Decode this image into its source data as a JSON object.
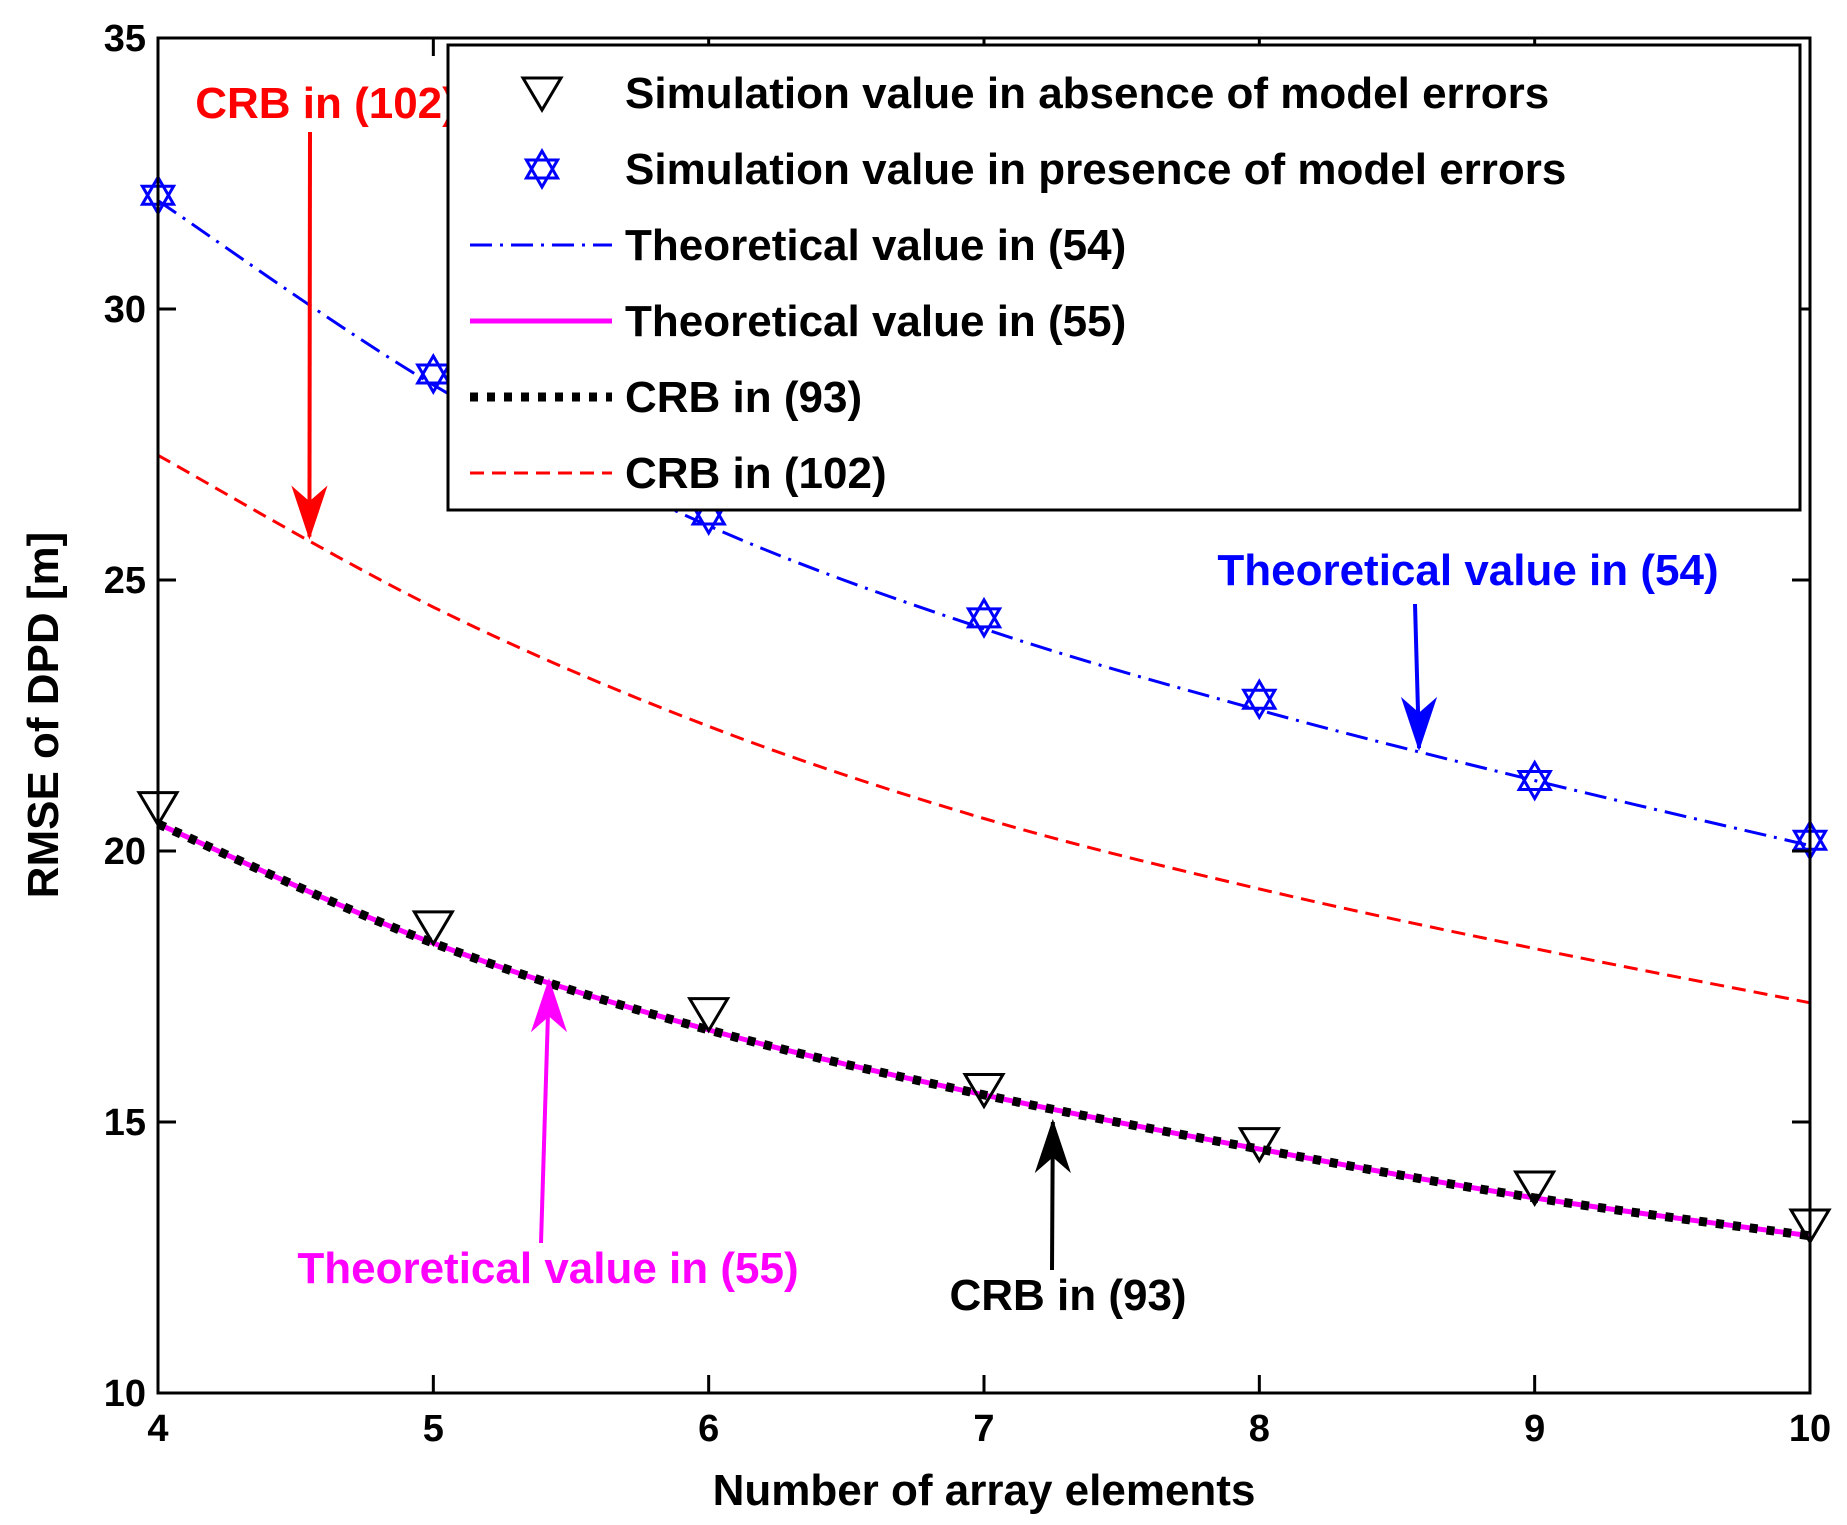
{
  "chart_data": {
    "type": "line",
    "title": "",
    "xlabel": "Number of array elements",
    "ylabel": "RMSE of DPD [m]",
    "xlim": [
      4,
      10
    ],
    "ylim": [
      10,
      35
    ],
    "x_ticks": [
      "4",
      "5",
      "6",
      "7",
      "8",
      "9",
      "10"
    ],
    "y_ticks": [
      "10",
      "15",
      "20",
      "25",
      "30",
      "35"
    ],
    "grid": false,
    "legend_position": "top-right",
    "series": [
      {
        "id": "sim_absence",
        "name": "Simulation value in absence of model errors",
        "style": "markers",
        "marker": "triangle-down",
        "color": "#000000",
        "x": [
          4,
          5,
          6,
          7,
          8,
          9,
          10
        ],
        "y": [
          20.8,
          18.6,
          17.0,
          15.6,
          14.6,
          13.8,
          13.1
        ]
      },
      {
        "id": "sim_presence",
        "name": "Simulation value in presence of model errors",
        "style": "markers",
        "marker": "hexagram",
        "color": "#0000ff",
        "x": [
          4,
          5,
          6,
          7,
          8,
          9,
          10
        ],
        "y": [
          32.1,
          28.8,
          26.2,
          24.3,
          22.8,
          21.3,
          20.2
        ]
      },
      {
        "id": "theo54",
        "name": "Theoretical value in (54)",
        "style": "dash-dot",
        "color": "#0000ff",
        "x": [
          4,
          5,
          6,
          7,
          8,
          9,
          10
        ],
        "y": [
          32.0,
          28.6,
          26.0,
          24.1,
          22.6,
          21.3,
          20.1
        ]
      },
      {
        "id": "theo55",
        "name": "Theoretical value in (55)",
        "style": "solid",
        "color": "#ff00ff",
        "x": [
          4,
          5,
          6,
          7,
          8,
          9,
          10
        ],
        "y": [
          20.5,
          18.3,
          16.7,
          15.5,
          14.5,
          13.6,
          12.9
        ]
      },
      {
        "id": "crb93",
        "name": "CRB in (93)",
        "style": "dotted",
        "color": "#000000",
        "x": [
          4,
          5,
          6,
          7,
          8,
          9,
          10
        ],
        "y": [
          20.5,
          18.3,
          16.7,
          15.5,
          14.5,
          13.6,
          12.9
        ]
      },
      {
        "id": "crb102",
        "name": "CRB in (102)",
        "style": "dashed",
        "color": "#ff0000",
        "x": [
          4,
          5,
          6,
          7,
          8,
          9,
          10
        ],
        "y": [
          27.3,
          24.5,
          22.3,
          20.6,
          19.3,
          18.2,
          17.2
        ]
      }
    ],
    "annotations": [
      {
        "id": "ann_crb102",
        "text": "CRB in (102)",
        "color": "#ff0000",
        "target_x": 4.55,
        "target_y": 25.8
      },
      {
        "id": "ann_theo54",
        "text": "Theoretical value in (54)",
        "color": "#0000ff",
        "target_x": 8.58,
        "target_y": 21.9
      },
      {
        "id": "ann_theo55",
        "text": "Theoretical value in (55)",
        "color": "#ff00ff",
        "target_x": 5.42,
        "target_y": 17.6
      },
      {
        "id": "ann_crb93",
        "text": "CRB in (93)",
        "color": "#000000",
        "target_x": 7.25,
        "target_y": 15.0
      }
    ]
  }
}
